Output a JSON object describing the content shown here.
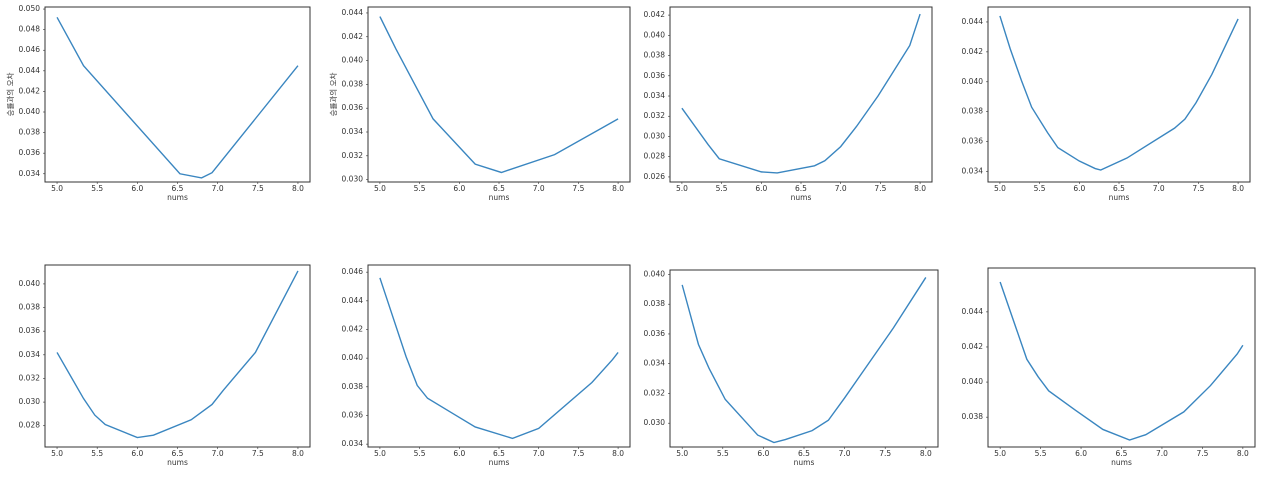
{
  "chart_data": [
    {
      "type": "line",
      "x_label": "nums",
      "y_label": "승률과의 오차",
      "color": "#3a86c0",
      "x": [
        5.0,
        5.33,
        6.53,
        6.8,
        6.93,
        8.0
      ],
      "values": [
        0.0492,
        0.0445,
        0.034,
        0.0336,
        0.0341,
        0.0445
      ],
      "xlim": [
        4.85,
        8.15
      ],
      "ylim": [
        0.0332,
        0.0502
      ],
      "xticks": [
        {
          "value": 5,
          "label": "5.0"
        },
        5.5,
        {
          "value": 6,
          "label": "6.0"
        },
        6.5,
        {
          "value": 7,
          "label": "7.0"
        },
        7.5,
        {
          "value": 8,
          "label": "8.0"
        }
      ],
      "yticks": [
        0.034,
        0.036,
        0.038,
        {
          "value": 0.04,
          "label": "0.040"
        },
        0.042,
        0.044,
        0.046,
        0.048,
        {
          "value": 0.05,
          "label": "0.050"
        }
      ]
    },
    {
      "type": "line",
      "x_label": "nums",
      "y_label": "승률과의 오차",
      "color": "#3a86c0",
      "x": [
        5.0,
        5.2,
        5.67,
        6.2,
        6.53,
        7.2,
        8.0
      ],
      "values": [
        0.0437,
        0.041,
        0.0351,
        0.0313,
        0.0306,
        0.0321,
        0.0351
      ],
      "xlim": [
        4.85,
        8.15
      ],
      "ylim": [
        0.0298,
        0.0445
      ],
      "xticks": [
        {
          "value": 5,
          "label": "5.0"
        },
        5.5,
        {
          "value": 6,
          "label": "6.0"
        },
        6.5,
        {
          "value": 7,
          "label": "7.0"
        },
        7.5,
        {
          "value": 8,
          "label": "8.0"
        }
      ],
      "yticks": [
        {
          "value": 0.03,
          "label": "0.030"
        },
        0.032,
        0.034,
        0.036,
        0.038,
        {
          "value": 0.04,
          "label": "0.040"
        },
        0.042,
        0.044
      ]
    },
    {
      "type": "line",
      "x_label": "nums",
      "color": "#3a86c0",
      "x": [
        5.0,
        5.33,
        5.47,
        6.0,
        6.2,
        6.67,
        6.8,
        7.0,
        7.2,
        7.47,
        7.87,
        8.0
      ],
      "values": [
        0.0328,
        0.0292,
        0.0278,
        0.0265,
        0.0264,
        0.0271,
        0.0276,
        0.029,
        0.031,
        0.034,
        0.039,
        0.0421
      ],
      "xlim": [
        4.85,
        8.15
      ],
      "ylim": [
        0.0255,
        0.0428
      ],
      "xticks": [
        {
          "value": 5,
          "label": "5.0"
        },
        5.5,
        {
          "value": 6,
          "label": "6.0"
        },
        6.5,
        {
          "value": 7,
          "label": "7.0"
        },
        7.5,
        {
          "value": 8,
          "label": "8.0"
        }
      ],
      "yticks": [
        0.026,
        0.028,
        {
          "value": 0.03,
          "label": "0.030"
        },
        0.032,
        0.034,
        0.036,
        0.038,
        {
          "value": 0.04,
          "label": "0.040"
        },
        0.042
      ]
    },
    {
      "type": "line",
      "x_label": "nums",
      "color": "#3a86c0",
      "x": [
        5.0,
        5.13,
        5.27,
        5.4,
        5.6,
        5.73,
        6.0,
        6.2,
        6.27,
        6.6,
        7.2,
        7.33,
        7.47,
        7.67,
        8.0
      ],
      "values": [
        0.0444,
        0.0422,
        0.0401,
        0.0383,
        0.0366,
        0.0356,
        0.0347,
        0.0342,
        0.0341,
        0.0349,
        0.0369,
        0.0375,
        0.0386,
        0.0405,
        0.0442
      ],
      "xlim": [
        4.85,
        8.15
      ],
      "ylim": [
        0.0333,
        0.045
      ],
      "xticks": [
        {
          "value": 5,
          "label": "5.0"
        },
        5.5,
        {
          "value": 6,
          "label": "6.0"
        },
        6.5,
        {
          "value": 7,
          "label": "7.0"
        },
        7.5,
        {
          "value": 8,
          "label": "8.0"
        }
      ],
      "yticks": [
        0.034,
        0.036,
        0.038,
        {
          "value": 0.04,
          "label": "0.040"
        },
        0.042,
        0.044
      ]
    },
    {
      "type": "line",
      "x_label": "nums",
      "color": "#3a86c0",
      "x": [
        5.0,
        5.33,
        5.47,
        5.6,
        6.0,
        6.2,
        6.67,
        6.93,
        7.07,
        7.47,
        8.0
      ],
      "values": [
        0.0342,
        0.0303,
        0.0289,
        0.0281,
        0.027,
        0.0272,
        0.0285,
        0.0298,
        0.031,
        0.0342,
        0.0411
      ],
      "xlim": [
        4.85,
        8.15
      ],
      "ylim": [
        0.0262,
        0.0416
      ],
      "xticks": [
        {
          "value": 5,
          "label": "5.0"
        },
        5.5,
        {
          "value": 6,
          "label": "6.0"
        },
        6.5,
        {
          "value": 7,
          "label": "7.0"
        },
        7.5,
        {
          "value": 8,
          "label": "8.0"
        }
      ],
      "yticks": [
        0.028,
        {
          "value": 0.03,
          "label": "0.030"
        },
        0.032,
        0.034,
        0.036,
        0.038,
        {
          "value": 0.04,
          "label": "0.040"
        }
      ]
    },
    {
      "type": "line",
      "x_label": "nums",
      "color": "#3a86c0",
      "x": [
        5.0,
        5.33,
        5.47,
        5.6,
        5.93,
        6.2,
        6.67,
        7.0,
        7.67,
        7.93,
        8.0
      ],
      "values": [
        0.0456,
        0.0401,
        0.0381,
        0.0372,
        0.0361,
        0.0352,
        0.0344,
        0.0351,
        0.0383,
        0.0399,
        0.0404
      ],
      "xlim": [
        4.85,
        8.15
      ],
      "ylim": [
        0.0338,
        0.0465
      ],
      "xticks": [
        {
          "value": 5,
          "label": "5.0"
        },
        5.5,
        {
          "value": 6,
          "label": "6.0"
        },
        6.5,
        {
          "value": 7,
          "label": "7.0"
        },
        7.5,
        {
          "value": 8,
          "label": "8.0"
        }
      ],
      "yticks": [
        0.034,
        0.036,
        0.038,
        {
          "value": 0.04,
          "label": "0.040"
        },
        0.042,
        0.044,
        0.046
      ]
    },
    {
      "type": "line",
      "x_label": "nums",
      "color": "#3a86c0",
      "x": [
        5.0,
        5.2,
        5.33,
        5.53,
        5.93,
        6.13,
        6.27,
        6.6,
        6.8,
        7.0,
        7.6,
        8.0
      ],
      "values": [
        0.0393,
        0.0353,
        0.0337,
        0.0316,
        0.0292,
        0.0287,
        0.0289,
        0.0295,
        0.0302,
        0.0317,
        0.0364,
        0.0398
      ],
      "xlim": [
        4.85,
        8.15
      ],
      "ylim": [
        0.0284,
        0.0403
      ],
      "xticks": [
        {
          "value": 5,
          "label": "5.0"
        },
        5.5,
        {
          "value": 6,
          "label": "6.0"
        },
        6.5,
        {
          "value": 7,
          "label": "7.0"
        },
        7.5,
        {
          "value": 8,
          "label": "8.0"
        }
      ],
      "yticks": [
        {
          "value": 0.03,
          "label": "0.030"
        },
        0.032,
        0.034,
        0.036,
        0.038,
        {
          "value": 0.04,
          "label": "0.040"
        }
      ]
    },
    {
      "type": "line",
      "x_label": "nums",
      "color": "#3a86c0",
      "x": [
        5.0,
        5.33,
        5.47,
        5.6,
        5.93,
        6.27,
        6.6,
        6.8,
        7.27,
        7.6,
        7.93,
        8.0
      ],
      "values": [
        0.0457,
        0.0413,
        0.0403,
        0.0395,
        0.0384,
        0.0373,
        0.0367,
        0.037,
        0.0383,
        0.0398,
        0.0416,
        0.0421
      ],
      "xlim": [
        4.85,
        8.15
      ],
      "ylim": [
        0.0363,
        0.0465
      ],
      "xticks": [
        {
          "value": 5,
          "label": "5.0"
        },
        5.5,
        {
          "value": 6,
          "label": "6.0"
        },
        6.5,
        {
          "value": 7,
          "label": "7.0"
        },
        7.5,
        {
          "value": 8,
          "label": "8.0"
        }
      ],
      "yticks": [
        0.038,
        {
          "value": 0.04,
          "label": "0.040"
        },
        0.042,
        0.044
      ]
    }
  ]
}
